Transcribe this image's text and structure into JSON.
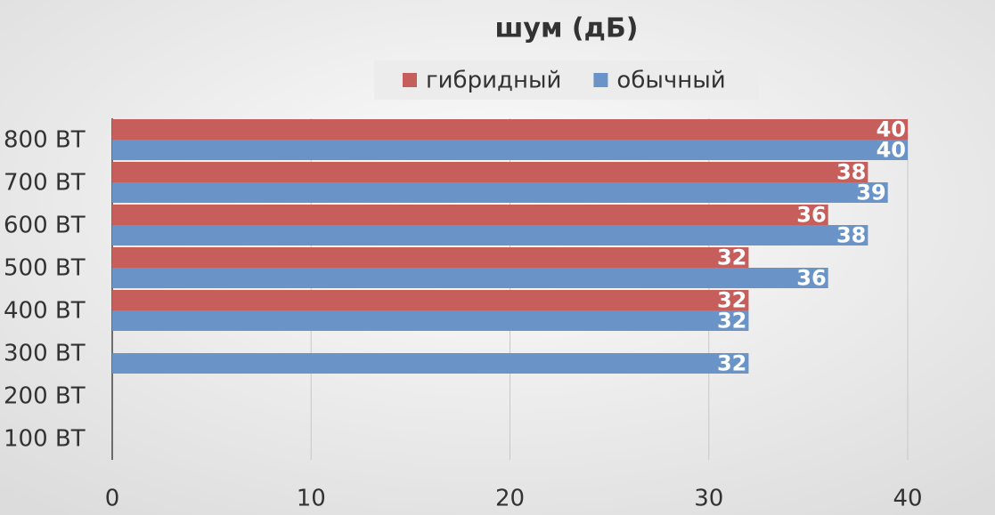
{
  "chart_data": {
    "type": "hbar",
    "title": "шум (дБ)",
    "categories": [
      "800 ВТ",
      "700 ВТ",
      "600 ВТ",
      "500 ВТ",
      "400 ВТ",
      "300 ВТ",
      "200 ВТ",
      "100 ВТ"
    ],
    "series": [
      {
        "name": "гибридный",
        "color": "#c65f5c",
        "values": [
          40,
          38,
          36,
          32,
          32,
          null,
          null,
          null
        ]
      },
      {
        "name": "обычный",
        "color": "#6a94c8",
        "values": [
          40,
          39,
          38,
          36,
          32,
          32,
          null,
          null
        ]
      }
    ],
    "xlim": [
      0,
      40
    ],
    "xticks": [
      0,
      10,
      20,
      30,
      40
    ],
    "grid": true,
    "legend": "top"
  }
}
